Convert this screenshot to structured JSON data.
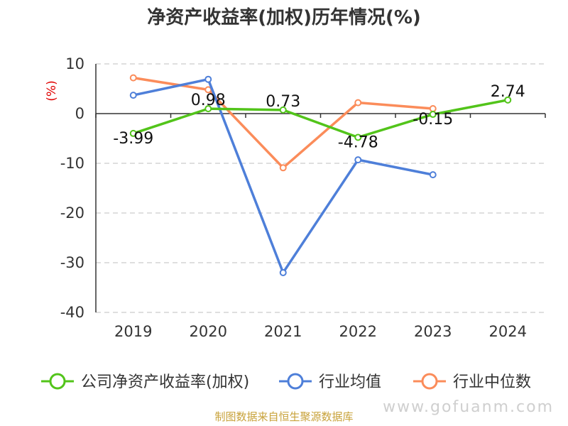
{
  "chart_data": {
    "type": "line",
    "title": "净资产收益率(加权)历年情况(%)",
    "ylabel": "(%)",
    "categories": [
      "2019",
      "2020",
      "2021",
      "2022",
      "2023",
      "2024"
    ],
    "ylim": [
      -40,
      10
    ],
    "yticks": [
      10,
      0,
      -10,
      -20,
      -30,
      -40
    ],
    "grid": true,
    "legend_position": "bottom",
    "series": [
      {
        "name": "公司净资产收益率(加权)",
        "color": "#52c41a",
        "values": [
          -3.99,
          0.98,
          0.73,
          -4.78,
          -0.15,
          2.74
        ],
        "labels": [
          "-3.99",
          "0.98",
          "0.73",
          "-4.78",
          "-0.15",
          "2.74"
        ]
      },
      {
        "name": "行业均值",
        "color": "#4e7fd9",
        "values": [
          3.7,
          6.9,
          -32.0,
          -9.3,
          -12.3,
          null
        ]
      },
      {
        "name": "行业中位数",
        "color": "#fb8c5a",
        "values": [
          7.2,
          4.8,
          -10.9,
          2.2,
          1.0,
          null
        ]
      }
    ]
  },
  "footer": {
    "source": "制图数据来自恒生聚源数据库",
    "watermark": "www.gofuanm.com"
  }
}
